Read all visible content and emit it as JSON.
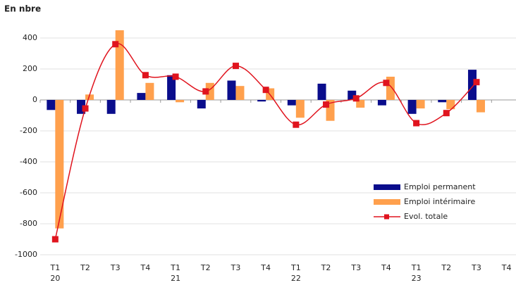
{
  "chart_data": {
    "type": "bar-line",
    "title": "En nbre",
    "categories": [
      "T1",
      "T2",
      "T3",
      "T4",
      "T1",
      "T2",
      "T3",
      "T4",
      "T1",
      "T2",
      "T3",
      "T4",
      "T1",
      "T2",
      "T3",
      "T4"
    ],
    "years": [
      "20",
      null,
      null,
      null,
      "21",
      null,
      null,
      null,
      "22",
      null,
      null,
      null,
      "23",
      null,
      null,
      null
    ],
    "series": [
      {
        "name": "Emploi permanent",
        "type": "bar",
        "color": "#0a0d8c",
        "values": [
          -65,
          -90,
          -90,
          45,
          160,
          -55,
          125,
          -10,
          -35,
          105,
          60,
          -35,
          -90,
          -15,
          195,
          null
        ]
      },
      {
        "name": "Emploi intérimaire",
        "type": "bar",
        "color": "#ffa04d",
        "values": [
          -830,
          35,
          450,
          110,
          -15,
          110,
          90,
          75,
          -115,
          -135,
          -50,
          150,
          -55,
          -60,
          -80,
          null
        ]
      },
      {
        "name": "Evol. totale",
        "type": "line",
        "color": "#e0141e",
        "values": [
          -900,
          -55,
          360,
          160,
          150,
          55,
          220,
          65,
          -160,
          -30,
          10,
          110,
          -150,
          -85,
          115,
          null
        ]
      }
    ],
    "ylim": [
      -1000,
      500
    ],
    "yticks": [
      -1000,
      -800,
      -600,
      -400,
      -200,
      0,
      200,
      400
    ],
    "grid": true
  }
}
